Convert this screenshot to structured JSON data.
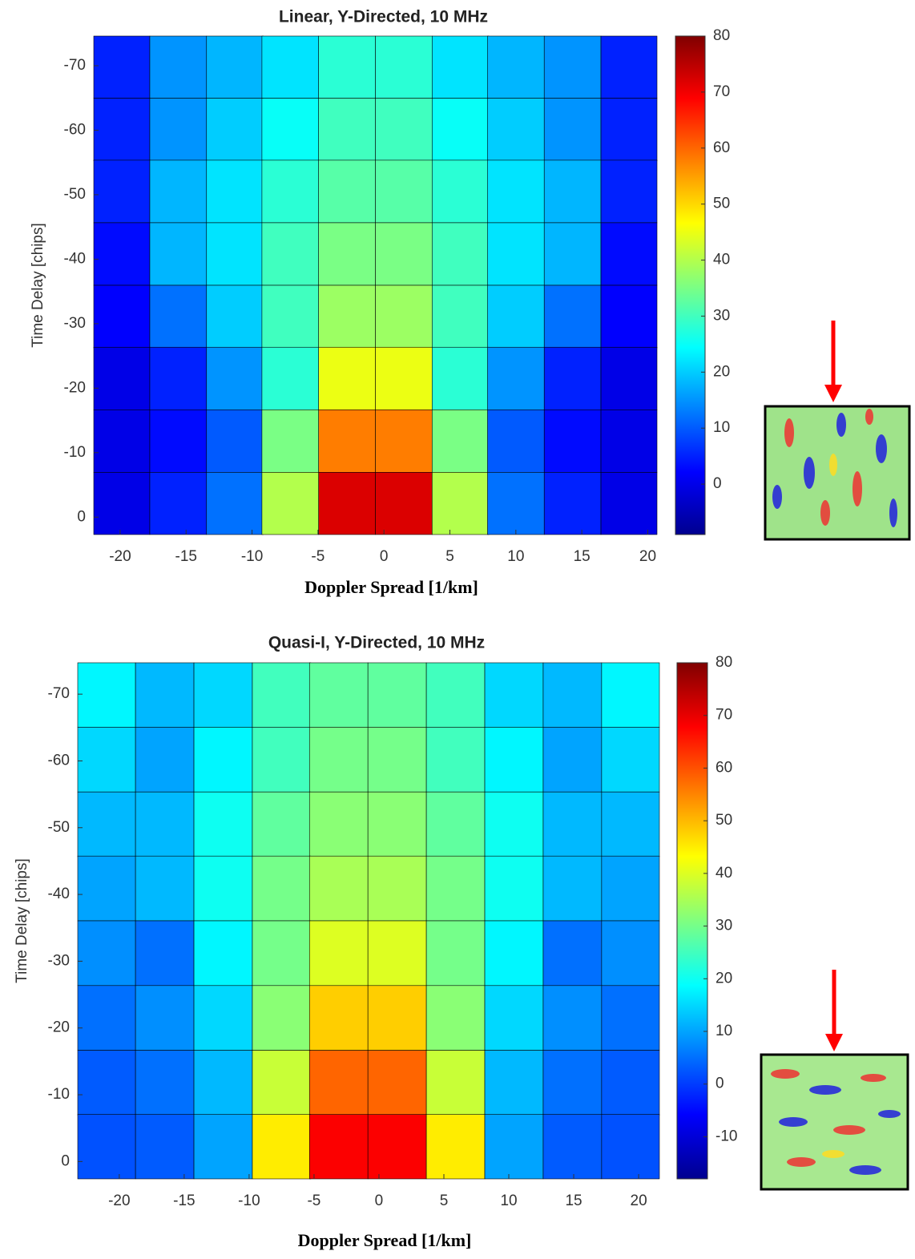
{
  "chart_data": [
    {
      "type": "heatmap",
      "title": "Linear, Y-Directed, 10 MHz",
      "xlabel": "Doppler Spread [1/km]",
      "ylabel": "Time Delay [chips]",
      "xlim": [
        -22,
        20.7
      ],
      "ylim": [
        2.7,
        -74.6
      ],
      "xticks": [
        -20,
        -15,
        -10,
        -5,
        0,
        5,
        10,
        15,
        20
      ],
      "yticks": [
        -70,
        -60,
        -50,
        -40,
        -30,
        -20,
        -10,
        0
      ],
      "clim": [
        -9,
        80
      ],
      "cticks": [
        0,
        10,
        20,
        30,
        40,
        50,
        60,
        70,
        80
      ],
      "colormap": "jet",
      "x": [
        -19.9,
        -15.6,
        -11.3,
        -7.1,
        -2.8,
        1.5,
        5.8,
        10.0,
        14.3,
        18.6
      ],
      "y": [
        -69.8,
        -60.1,
        -50.5,
        -40.8,
        -31.1,
        -21.5,
        -11.8,
        -2.1
      ],
      "z": [
        [
          5,
          15,
          18,
          22,
          28,
          28,
          22,
          18,
          15,
          5
        ],
        [
          5,
          15,
          20,
          25,
          30,
          30,
          25,
          20,
          15,
          5
        ],
        [
          5,
          18,
          22,
          28,
          32,
          32,
          28,
          22,
          18,
          5
        ],
        [
          3,
          18,
          22,
          30,
          35,
          35,
          30,
          22,
          18,
          3
        ],
        [
          2,
          12,
          20,
          30,
          38,
          38,
          30,
          20,
          12,
          2
        ],
        [
          0,
          5,
          15,
          28,
          45,
          45,
          28,
          15,
          5,
          0
        ],
        [
          0,
          3,
          10,
          35,
          58,
          58,
          35,
          10,
          3,
          0
        ],
        [
          0,
          5,
          12,
          40,
          72,
          72,
          40,
          12,
          5,
          0
        ]
      ]
    },
    {
      "type": "heatmap",
      "title": "Quasi-I, Y-Directed, 10 MHz",
      "xlabel": "Doppler Spread [1/km]",
      "ylabel": "Time Delay [chips]",
      "xlim": [
        -23.2,
        21.6
      ],
      "ylim": [
        2.6,
        -74.7
      ],
      "xticks": [
        -20,
        -15,
        -10,
        -5,
        0,
        5,
        10,
        15,
        20
      ],
      "yticks": [
        -70,
        -60,
        -50,
        -40,
        -30,
        -20,
        -10,
        0
      ],
      "clim": [
        -18,
        80
      ],
      "cticks": [
        -10,
        0,
        10,
        20,
        30,
        40,
        50,
        60,
        70,
        80
      ],
      "colormap": "jet",
      "x": [
        -21.0,
        -16.5,
        -12.0,
        -7.5,
        -3.1,
        1.4,
        5.9,
        10.4,
        14.9,
        19.4
      ],
      "y": [
        -69.9,
        -60.2,
        -50.5,
        -40.9,
        -31.2,
        -21.5,
        -11.8,
        -2.2
      ],
      "z": [
        [
          18,
          12,
          15,
          25,
          28,
          28,
          25,
          15,
          12,
          18
        ],
        [
          15,
          10,
          18,
          25,
          30,
          30,
          25,
          18,
          10,
          15
        ],
        [
          12,
          12,
          20,
          28,
          32,
          32,
          28,
          20,
          12,
          12
        ],
        [
          10,
          12,
          20,
          30,
          35,
          35,
          30,
          20,
          12,
          10
        ],
        [
          8,
          5,
          18,
          30,
          40,
          40,
          30,
          18,
          5,
          8
        ],
        [
          5,
          8,
          15,
          32,
          48,
          48,
          32,
          15,
          8,
          5
        ],
        [
          3,
          5,
          12,
          38,
          58,
          58,
          38,
          12,
          5,
          3
        ],
        [
          2,
          3,
          10,
          45,
          68,
          68,
          45,
          10,
          3,
          2
        ]
      ]
    }
  ]
}
